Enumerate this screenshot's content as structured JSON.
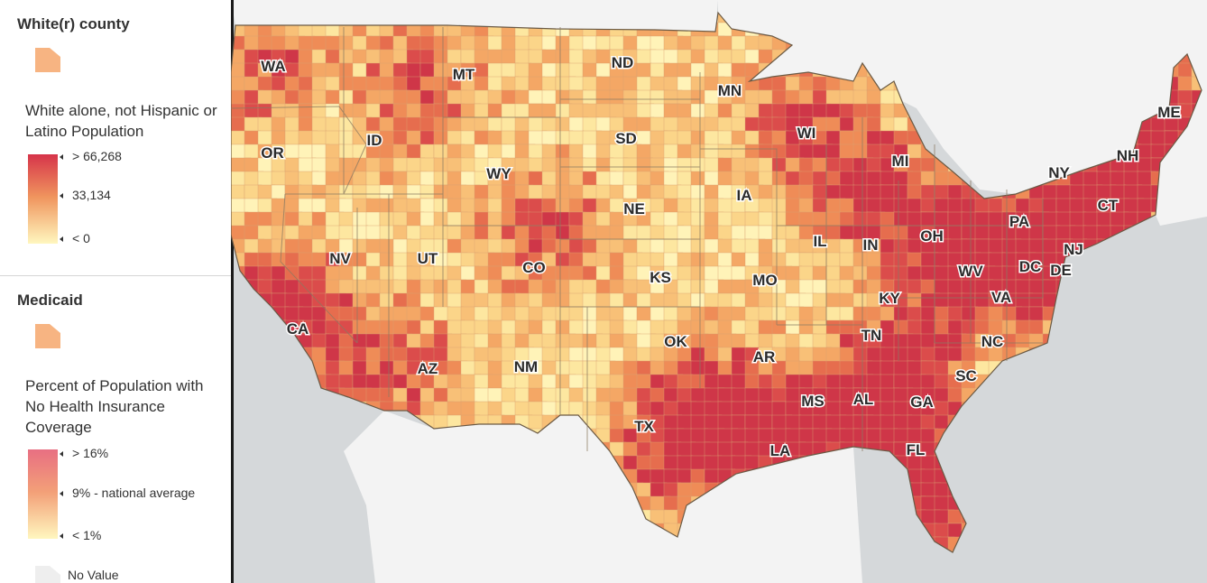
{
  "legend": {
    "layers": [
      {
        "title": "White(r) county",
        "field": "White alone, not Hispanic or Latino Population",
        "ramp_labels": [
          "> 66,268",
          "33,134",
          "< 0"
        ]
      },
      {
        "title": "Medicaid",
        "field": "Percent of Population with No Health Insurance Coverage",
        "ramp_labels": [
          "> 16%",
          "9% - national average",
          "< 1%"
        ],
        "no_value_label": "No Value"
      }
    ]
  },
  "colors": {
    "ramp_high": "#d6344a",
    "ramp_mid": "#f0955e",
    "ramp_low": "#fff7bf",
    "swatch": "#f7b482",
    "no_value": "#eeeeee",
    "land_outside": "#f3f3f3",
    "water": "#d5d8da"
  },
  "map": {
    "state_labels": [
      "WA",
      "OR",
      "CA",
      "ID",
      "NV",
      "MT",
      "WY",
      "UT",
      "AZ",
      "CO",
      "NM",
      "ND",
      "SD",
      "NE",
      "KS",
      "OK",
      "TX",
      "MN",
      "IA",
      "MO",
      "AR",
      "LA",
      "WI",
      "IL",
      "MI",
      "IN",
      "OH",
      "KY",
      "TN",
      "MS",
      "AL",
      "GA",
      "FL",
      "SC",
      "NC",
      "VA",
      "WV",
      "PA",
      "NY",
      "DC",
      "DE",
      "NJ",
      "CT",
      "NH",
      "ME"
    ]
  }
}
